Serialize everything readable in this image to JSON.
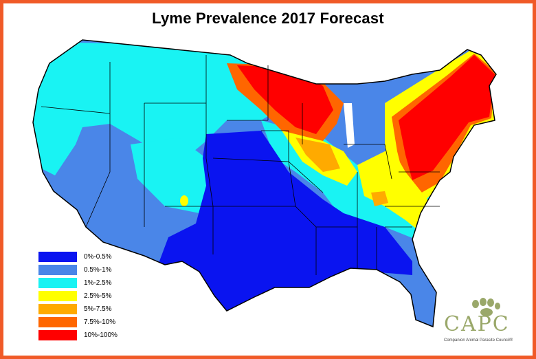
{
  "title": "Lyme Prevalence 2017 Forecast",
  "legend": [
    {
      "label": "0%-0.5%",
      "color": "#0a14f0"
    },
    {
      "label": "0.5%-1%",
      "color": "#4a86e8"
    },
    {
      "label": "1%-2.5%",
      "color": "#19f3f3"
    },
    {
      "label": "2.5%-5%",
      "color": "#ffff00"
    },
    {
      "label": "5%-7.5%",
      "color": "#ffaa00"
    },
    {
      "label": "7.5%-10%",
      "color": "#ff6600"
    },
    {
      "label": "10%-100%",
      "color": "#ff0000"
    }
  ],
  "logo": {
    "name": "CAPC",
    "subtitle": "Companion Animal Parasite Council®",
    "color": "#9aa86a"
  },
  "frame_color": "#f05a28"
}
